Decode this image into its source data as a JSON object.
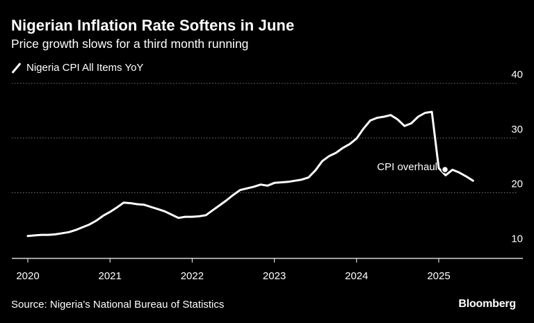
{
  "header": {
    "title": "Nigerian Inflation Rate Softens in June",
    "subtitle": "Price growth slows for a third month running"
  },
  "footer": {
    "source": "Source: Nigeria's National Bureau of Statistics",
    "brand": "Bloomberg"
  },
  "colors": {
    "background": "#000000",
    "line": "#ffffff",
    "grid": "#7a7a7a"
  },
  "chart_data": {
    "type": "line",
    "title": "Nigerian Inflation Rate Softens in June",
    "subtitle": "Price growth slows for a third month running",
    "legend": [
      "Nigeria CPI All Items YoY"
    ],
    "legend_position": "top-left",
    "xlabel": "",
    "ylabel": "",
    "y_axis_side": "right",
    "ylim": [
      8,
      40
    ],
    "yticks": [
      10,
      20,
      30,
      40
    ],
    "grid": "horizontal dotted",
    "xticks": [
      "2020",
      "2021",
      "2022",
      "2023",
      "2024",
      "2025"
    ],
    "annotations": [
      {
        "text": "CPI overhaul",
        "x": "2025-01",
        "y": 24.5
      }
    ],
    "series": [
      {
        "name": "Nigeria CPI All Items YoY",
        "points": [
          [
            "2020-01",
            12.1
          ],
          [
            "2020-02",
            12.2
          ],
          [
            "2020-03",
            12.3
          ],
          [
            "2020-04",
            12.3
          ],
          [
            "2020-05",
            12.4
          ],
          [
            "2020-06",
            12.6
          ],
          [
            "2020-07",
            12.8
          ],
          [
            "2020-08",
            13.2
          ],
          [
            "2020-09",
            13.7
          ],
          [
            "2020-10",
            14.2
          ],
          [
            "2020-11",
            14.9
          ],
          [
            "2020-12",
            15.8
          ],
          [
            "2021-01",
            16.5
          ],
          [
            "2021-02",
            17.3
          ],
          [
            "2021-03",
            18.2
          ],
          [
            "2021-04",
            18.1
          ],
          [
            "2021-05",
            17.9
          ],
          [
            "2021-06",
            17.8
          ],
          [
            "2021-07",
            17.4
          ],
          [
            "2021-08",
            17.0
          ],
          [
            "2021-09",
            16.6
          ],
          [
            "2021-10",
            16.0
          ],
          [
            "2021-11",
            15.4
          ],
          [
            "2021-12",
            15.6
          ],
          [
            "2022-01",
            15.6
          ],
          [
            "2022-02",
            15.7
          ],
          [
            "2022-03",
            15.9
          ],
          [
            "2022-04",
            16.8
          ],
          [
            "2022-05",
            17.7
          ],
          [
            "2022-06",
            18.6
          ],
          [
            "2022-07",
            19.6
          ],
          [
            "2022-08",
            20.5
          ],
          [
            "2022-09",
            20.8
          ],
          [
            "2022-10",
            21.1
          ],
          [
            "2022-11",
            21.5
          ],
          [
            "2022-12",
            21.3
          ],
          [
            "2023-01",
            21.8
          ],
          [
            "2023-02",
            21.9
          ],
          [
            "2023-03",
            22.0
          ],
          [
            "2023-04",
            22.2
          ],
          [
            "2023-05",
            22.4
          ],
          [
            "2023-06",
            22.8
          ],
          [
            "2023-07",
            24.1
          ],
          [
            "2023-08",
            25.8
          ],
          [
            "2023-09",
            26.7
          ],
          [
            "2023-10",
            27.3
          ],
          [
            "2023-11",
            28.2
          ],
          [
            "2023-12",
            28.9
          ],
          [
            "2024-01",
            29.9
          ],
          [
            "2024-02",
            31.7
          ],
          [
            "2024-03",
            33.2
          ],
          [
            "2024-04",
            33.7
          ],
          [
            "2024-05",
            33.9
          ],
          [
            "2024-06",
            34.2
          ],
          [
            "2024-07",
            33.4
          ],
          [
            "2024-08",
            32.2
          ],
          [
            "2024-09",
            32.7
          ],
          [
            "2024-10",
            33.9
          ],
          [
            "2024-11",
            34.6
          ],
          [
            "2024-12",
            34.8
          ],
          [
            "2025-01",
            24.5
          ],
          [
            "2025-02",
            23.2
          ],
          [
            "2025-03",
            24.2
          ],
          [
            "2025-04",
            23.7
          ],
          [
            "2025-05",
            23.0
          ],
          [
            "2025-06",
            22.2
          ]
        ]
      }
    ]
  }
}
